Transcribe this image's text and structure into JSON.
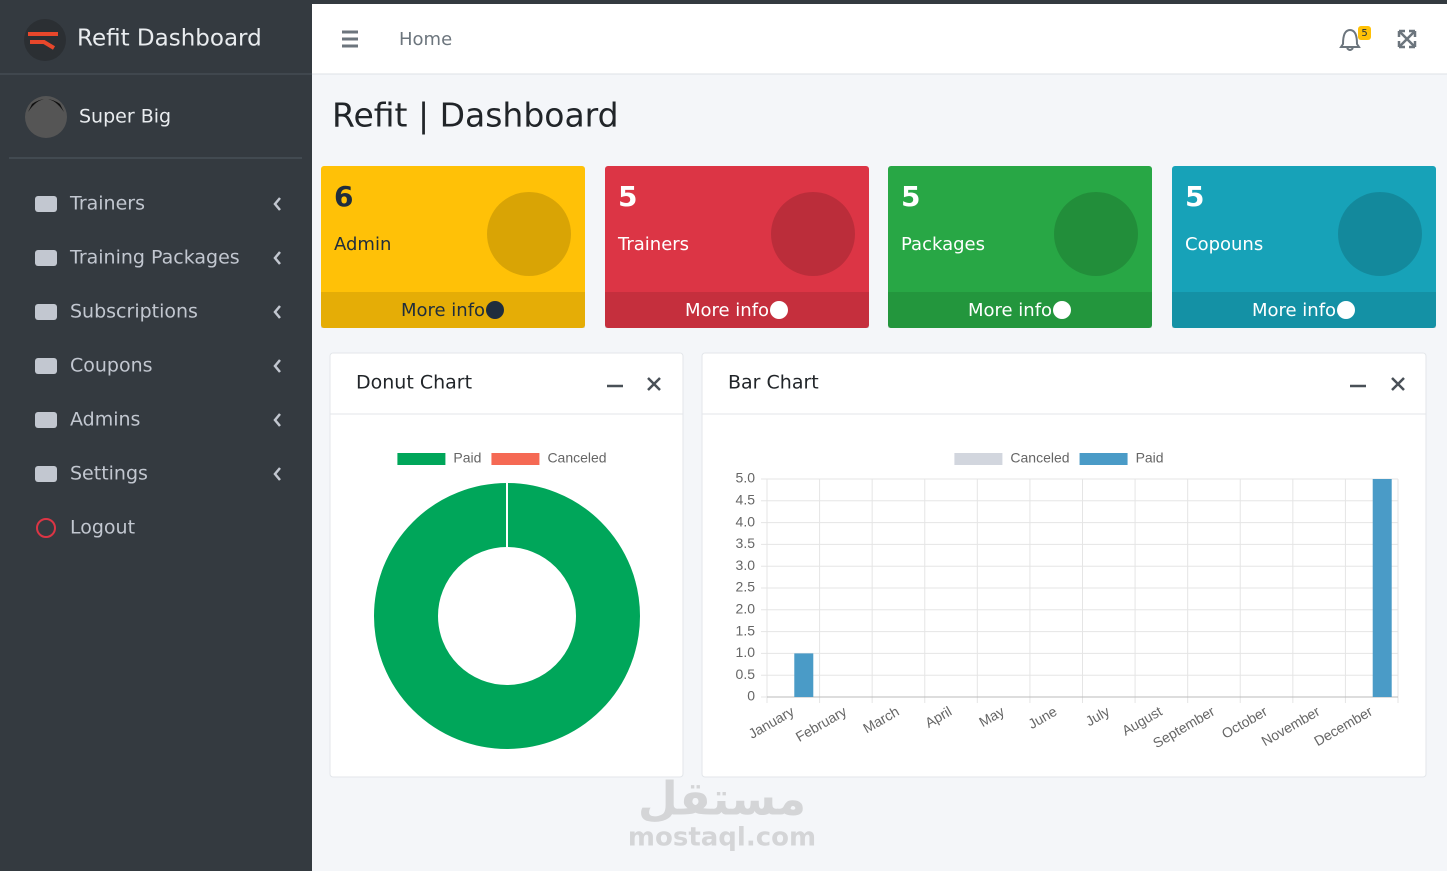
{
  "sidebar": {
    "brand": "Refit Dashboard",
    "user": "Super Big",
    "menu": [
      "Trainers",
      "Training Packages",
      "Subscriptions",
      "Coupons",
      "Admins",
      "Settings",
      "Logout"
    ]
  },
  "header": {
    "breadcrumb": "Home",
    "notifications": 5
  },
  "page_title": "Refit | Dashboard",
  "cards": [
    {
      "value": 6,
      "label": "Admin",
      "link": "More info"
    },
    {
      "value": 5,
      "label": "Trainers",
      "link": "More info"
    },
    {
      "value": 5,
      "label": "Packages",
      "link": "More info"
    },
    {
      "value": 5,
      "label": "Copouns",
      "link": "More info"
    }
  ],
  "chart_data": [
    {
      "type": "doughnut",
      "title": "Donut Chart",
      "categories": [
        "Paid",
        "Canceled"
      ],
      "values": [
        6,
        0
      ],
      "colors": [
        "#00a65a",
        "#f56954"
      ]
    },
    {
      "type": "bar",
      "title": "Bar Chart",
      "categories": [
        "January",
        "February",
        "March",
        "April",
        "May",
        "June",
        "July",
        "August",
        "September",
        "October",
        "November",
        "December"
      ],
      "series": [
        {
          "name": "Canceled",
          "color": "#d2d6de",
          "values": [
            0,
            0,
            0,
            0,
            0,
            0,
            0,
            0,
            0,
            0,
            0,
            0
          ]
        },
        {
          "name": "Paid",
          "color": "#4a9bc7",
          "values": [
            1,
            0,
            0,
            0,
            0,
            0,
            0,
            0,
            0,
            0,
            0,
            5
          ]
        }
      ],
      "ylim": [
        0,
        5
      ],
      "yticks": [
        0,
        0.5,
        {
          "value": 1,
          "label": "1.0"
        },
        1.5,
        {
          "value": 2,
          "label": "2.0"
        },
        2.5,
        {
          "value": 3,
          "label": "3.0"
        },
        3.5,
        {
          "value": 4,
          "label": "4.0"
        },
        4.5,
        {
          "value": 5,
          "label": "5.0"
        }
      ],
      "grid": true
    }
  ],
  "watermark": [
    "مستقل",
    "mostaql.com"
  ]
}
